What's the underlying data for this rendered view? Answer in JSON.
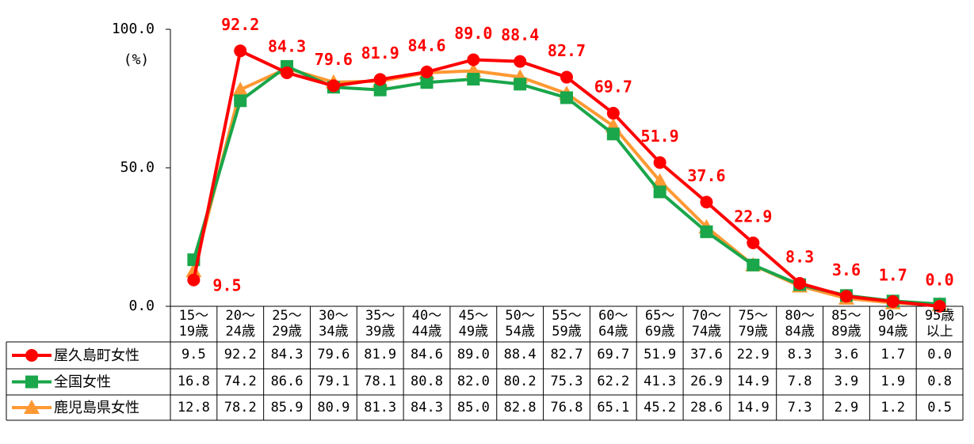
{
  "chart_data": {
    "type": "line",
    "y_label": "(%)",
    "categories": [
      "15～\n19歳",
      "20～\n24歳",
      "25～\n29歳",
      "30～\n34歳",
      "35～\n39歳",
      "40～\n44歳",
      "45～\n49歳",
      "50～\n54歳",
      "55～\n59歳",
      "60～\n64歳",
      "65～\n69歳",
      "70～\n74歳",
      "75～\n79歳",
      "80～\n84歳",
      "85～\n89歳",
      "90～\n94歳",
      "95歳\n以上"
    ],
    "ylim": [
      0,
      100
    ],
    "yticks": [
      {
        "value": 0,
        "label": "0.0"
      },
      {
        "value": 50,
        "label": "50.0"
      },
      {
        "value": 100,
        "label": "100.0"
      }
    ],
    "series": [
      {
        "name": "屋久島町女性",
        "color": "#ff0000",
        "marker": "circle",
        "values": [
          9.5,
          92.2,
          84.3,
          79.6,
          81.9,
          84.6,
          89.0,
          88.4,
          82.7,
          69.7,
          51.9,
          37.6,
          22.9,
          8.3,
          3.6,
          1.7,
          0.0
        ],
        "value_labels": [
          "9.5",
          "92.2",
          "84.3",
          "79.6",
          "81.9",
          "84.6",
          "89.0",
          "88.4",
          "82.7",
          "69.7",
          "51.9",
          "37.6",
          "22.9",
          "8.3",
          "3.6",
          "1.7",
          "0.0"
        ]
      },
      {
        "name": "全国女性",
        "color": "#1aa64a",
        "marker": "square",
        "values": [
          16.8,
          74.2,
          86.6,
          79.1,
          78.1,
          80.8,
          82.0,
          80.2,
          75.3,
          62.2,
          41.3,
          26.9,
          14.9,
          7.8,
          3.9,
          1.9,
          0.8
        ],
        "value_labels": [
          "16.8",
          "74.2",
          "86.6",
          "79.1",
          "78.1",
          "80.8",
          "82.0",
          "80.2",
          "75.3",
          "62.2",
          "41.3",
          "26.9",
          "14.9",
          "7.8",
          "3.9",
          "1.9",
          "0.8"
        ]
      },
      {
        "name": "鹿児島県女性",
        "color": "#ff9933",
        "marker": "triangle",
        "values": [
          12.8,
          78.2,
          85.9,
          80.9,
          81.3,
          84.3,
          85.0,
          82.8,
          76.8,
          65.1,
          45.2,
          28.6,
          14.9,
          7.3,
          2.9,
          1.2,
          0.5
        ],
        "value_labels": [
          "12.8",
          "78.2",
          "85.9",
          "80.9",
          "81.3",
          "84.3",
          "85.0",
          "82.8",
          "76.8",
          "65.1",
          "45.2",
          "28.6",
          "14.9",
          "7.3",
          "2.9",
          "1.2",
          "0.5"
        ]
      }
    ],
    "data_labels_series": 0
  }
}
